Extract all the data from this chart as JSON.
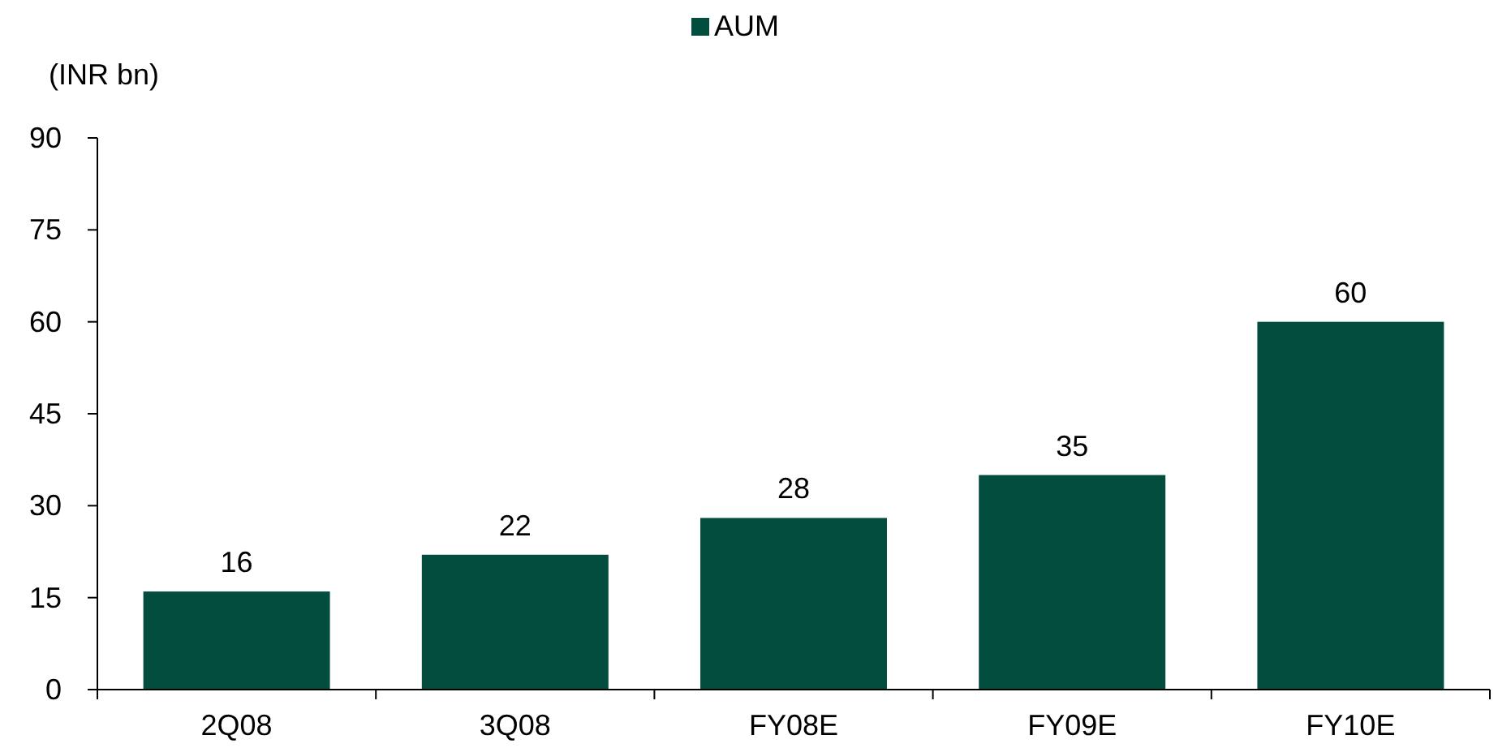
{
  "chart_data": {
    "type": "bar",
    "ylabel": "(INR bn)",
    "categories": [
      "2Q08",
      "3Q08",
      "FY08E",
      "FY09E",
      "FY10E"
    ],
    "series": [
      {
        "name": "AUM",
        "color": "#024d3d",
        "values": [
          16,
          22,
          28,
          35,
          60
        ]
      }
    ],
    "ylim": [
      0,
      90
    ],
    "yticks": [
      0,
      15,
      30,
      45,
      60,
      75,
      90
    ],
    "grid": false,
    "legend": "top",
    "data_labels": true
  }
}
